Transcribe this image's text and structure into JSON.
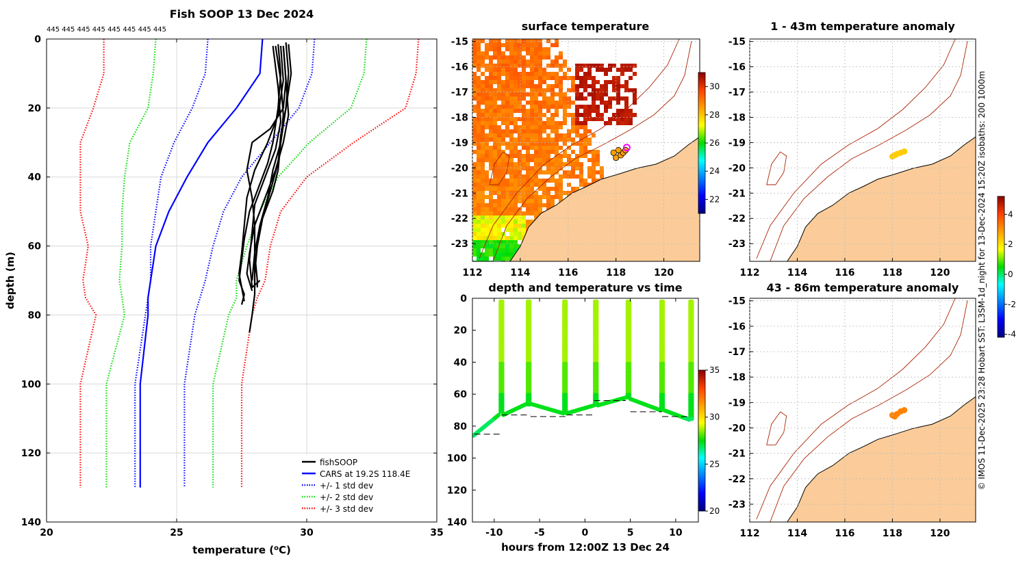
{
  "figure_title": "Fish SOOP 13 Dec 2024",
  "serial_numbers": "445 445 445 445 445 445 445 445",
  "credit_text": "© IMOS 11-Dec-2025 23:28 Hobart SST: L3SM-1d_night for 13-Dec-2024 15:20Z isobaths: 200  1000m",
  "colors": {
    "fishsoop": "#000000",
    "cars": "#0000ff",
    "std1": "#0000ff",
    "std2": "#00dd00",
    "std3": "#ff0000",
    "land": "#fbcc99",
    "coast": "#000000",
    "isobath": "#aa2200",
    "grid": "#d8d8d8"
  },
  "chart_data": [
    {
      "id": "profile",
      "type": "line",
      "title": "",
      "xlabel": "temperature (°C)",
      "ylabel": "depth (m)",
      "xlim": [
        20,
        35
      ],
      "ylim": [
        0,
        140
      ],
      "xticks": [
        "20",
        "25",
        "30",
        "35"
      ],
      "yticks": [
        "0",
        "20",
        "40",
        "60",
        "80",
        "100",
        "120",
        "140"
      ],
      "yaxis_reversed": true,
      "legend": {
        "position": "bottom-right",
        "entries": [
          {
            "label": "fishSOOP",
            "key": "fishsoop"
          },
          {
            "label": "CARS at 19.2S 118.4E",
            "key": "cars"
          },
          {
            "label": "+/- 1 std dev",
            "key": "std1"
          },
          {
            "label": "+/- 2 std dev",
            "key": "std2"
          },
          {
            "label": "+/- 3 std dev",
            "key": "std3"
          }
        ]
      },
      "depth": [
        0,
        10,
        20,
        30,
        40,
        50,
        60,
        70,
        75,
        80,
        100,
        130
      ],
      "series": [
        {
          "name": "CARS mean",
          "key": "cars",
          "style": "solid",
          "values": [
            28.3,
            28.2,
            27.3,
            26.2,
            25.4,
            24.7,
            24.2,
            24.0,
            23.9,
            23.9,
            23.6,
            23.6
          ]
        },
        {
          "name": "CARS -1 std",
          "key": "std1",
          "style": "dotted",
          "values": [
            26.2,
            26.1,
            25.6,
            24.9,
            24.4,
            24.2,
            24.0,
            24.0,
            23.9,
            23.8,
            23.4,
            23.4
          ]
        },
        {
          "name": "CARS +1 std",
          "key": "std1",
          "style": "dotted",
          "values": [
            30.3,
            30.2,
            29.7,
            28.6,
            27.5,
            26.8,
            26.4,
            26.1,
            25.9,
            25.7,
            25.3,
            25.3
          ]
        },
        {
          "name": "CARS -2 std",
          "key": "std2",
          "style": "dotted",
          "values": [
            24.2,
            24.1,
            23.9,
            23.2,
            23.0,
            22.9,
            22.9,
            22.8,
            22.9,
            23.0,
            22.3,
            22.3
          ]
        },
        {
          "name": "CARS +2 std",
          "key": "std2",
          "style": "dotted",
          "values": [
            32.3,
            32.2,
            31.7,
            30.1,
            28.9,
            28.2,
            27.7,
            27.3,
            27.3,
            27.0,
            26.4,
            26.4
          ]
        },
        {
          "name": "CARS -3 std",
          "key": "std3",
          "style": "dotted",
          "values": [
            22.2,
            22.2,
            21.8,
            21.3,
            21.3,
            21.3,
            21.6,
            21.4,
            21.5,
            21.9,
            21.3,
            21.3
          ]
        },
        {
          "name": "CARS +3 std",
          "key": "std3",
          "style": "dotted",
          "values": [
            34.3,
            34.2,
            33.8,
            31.8,
            30.0,
            29.0,
            28.6,
            28.4,
            28.1,
            27.9,
            27.5,
            27.5
          ]
        }
      ],
      "profiles": [
        {
          "values": [
            [
              28.9,
              1.5
            ],
            [
              29.0,
              10
            ],
            [
              28.9,
              20
            ],
            [
              28.7,
              30
            ],
            [
              28.5,
              36
            ],
            [
              28.2,
              42
            ],
            [
              27.8,
              50
            ],
            [
              27.6,
              58
            ],
            [
              27.5,
              64
            ],
            [
              27.4,
              70
            ],
            [
              27.6,
              74
            ],
            [
              27.5,
              77
            ]
          ]
        },
        {
          "values": [
            [
              29.1,
              2
            ],
            [
              29.2,
              12
            ],
            [
              29.3,
              22
            ],
            [
              29.1,
              30
            ],
            [
              28.8,
              38
            ],
            [
              28.4,
              46
            ],
            [
              28.0,
              54
            ],
            [
              27.8,
              62
            ],
            [
              27.7,
              68
            ],
            [
              27.9,
              73
            ]
          ]
        },
        {
          "values": [
            [
              29.3,
              1.5
            ],
            [
              29.4,
              10
            ],
            [
              29.2,
              20
            ],
            [
              29.0,
              28
            ],
            [
              28.9,
              36
            ],
            [
              28.6,
              44
            ],
            [
              28.3,
              52
            ],
            [
              28.1,
              60
            ],
            [
              28.0,
              66
            ],
            [
              28.0,
              72
            ]
          ]
        },
        {
          "values": [
            [
              28.7,
              2
            ],
            [
              28.9,
              14
            ],
            [
              29.0,
              24
            ],
            [
              28.8,
              32
            ],
            [
              28.4,
              40
            ],
            [
              28.0,
              48
            ],
            [
              27.9,
              56
            ],
            [
              27.8,
              64
            ],
            [
              27.9,
              72
            ],
            [
              28.2,
              70
            ]
          ]
        },
        {
          "values": [
            [
              29.0,
              2
            ],
            [
              29.1,
              12
            ],
            [
              28.9,
              22
            ],
            [
              28.5,
              30
            ],
            [
              28.0,
              38
            ],
            [
              27.7,
              46
            ],
            [
              27.6,
              54
            ],
            [
              27.5,
              62
            ],
            [
              27.4,
              68
            ],
            [
              27.6,
              76
            ]
          ]
        },
        {
          "values": [
            [
              29.2,
              1
            ],
            [
              29.3,
              10
            ],
            [
              29.2,
              20
            ],
            [
              29.0,
              30
            ],
            [
              28.7,
              38
            ],
            [
              28.5,
              46
            ],
            [
              28.2,
              54
            ],
            [
              28.0,
              62
            ],
            [
              27.9,
              70
            ]
          ]
        },
        {
          "values": [
            [
              28.8,
              2
            ],
            [
              29.0,
              12
            ],
            [
              29.1,
              22
            ],
            [
              29.0,
              30
            ],
            [
              28.9,
              38
            ],
            [
              28.7,
              44
            ],
            [
              28.3,
              52
            ],
            [
              28.1,
              60
            ],
            [
              28.0,
              68
            ],
            [
              28.0,
              74
            ],
            [
              27.9,
              80
            ],
            [
              27.8,
              85
            ]
          ]
        },
        {
          "values": [
            [
              29.1,
              2
            ],
            [
              29.2,
              12
            ],
            [
              29.1,
              20
            ],
            [
              28.6,
              26
            ],
            [
              27.9,
              30
            ],
            [
              27.7,
              38
            ],
            [
              27.9,
              46
            ],
            [
              28.0,
              54
            ],
            [
              28.0,
              62
            ],
            [
              28.1,
              70
            ],
            [
              28.1,
              72
            ]
          ]
        }
      ]
    },
    {
      "id": "time",
      "type": "scatter",
      "title": "depth and temperature vs time",
      "xlabel": "hours from 12:00Z 13 Dec 24",
      "ylabel": "",
      "xlim": [
        -12.4,
        12.5
      ],
      "ylim": [
        0,
        140
      ],
      "xticks": [
        "-10",
        "-5",
        "0",
        "5",
        "10"
      ],
      "yticks": [
        "0",
        "20",
        "40",
        "60",
        "80",
        "100",
        "120",
        "140"
      ],
      "yaxis_reversed": true,
      "colorbar": {
        "min": 20,
        "max": 35,
        "ticks": [
          "20",
          "25",
          "30",
          "35"
        ]
      },
      "dives": [
        {
          "t": -9.2,
          "bottom": 72
        },
        {
          "t": -6.2,
          "bottom": 67
        },
        {
          "t": -2.2,
          "bottom": 72
        },
        {
          "t": 1.2,
          "bottom": 65
        },
        {
          "t": 4.8,
          "bottom": 63
        },
        {
          "t": 8.5,
          "bottom": 70
        },
        {
          "t": 11.7,
          "bottom": 76
        }
      ],
      "bottom_segments": [
        {
          "t0": -12.3,
          "t1": -9.5,
          "d0": 86,
          "d1": 73
        },
        {
          "t0": -9.0,
          "t1": -6.4,
          "d0": 73,
          "d1": 66
        },
        {
          "t0": -6.0,
          "t1": -2.4,
          "d0": 66,
          "d1": 72
        },
        {
          "t0": -2.0,
          "t1": 1.0,
          "d0": 72,
          "d1": 67
        },
        {
          "t0": 1.4,
          "t1": 4.6,
          "d0": 67,
          "d1": 62
        },
        {
          "t0": 5.0,
          "t1": 8.3,
          "d0": 63,
          "d1": 70
        },
        {
          "t0": 8.7,
          "t1": 11.5,
          "d0": 70,
          "d1": 76
        }
      ],
      "dashed_levels": [
        {
          "t0": -12.2,
          "t1": -9.2,
          "d": 85
        },
        {
          "t0": -9.2,
          "t1": -6.0,
          "d": 73
        },
        {
          "t0": -6.0,
          "t1": -2.0,
          "d": 74
        },
        {
          "t0": -2.0,
          "t1": 1.0,
          "d": 73
        },
        {
          "t0": 1.0,
          "t1": 4.5,
          "d": 64
        },
        {
          "t0": 5.0,
          "t1": 8.5,
          "d": 71
        },
        {
          "t0": 8.5,
          "t1": 11.5,
          "d": 74
        }
      ]
    },
    {
      "id": "sst_map",
      "type": "heatmap",
      "title": "surface temperature",
      "xticks": [
        "112",
        "114",
        "116",
        "118",
        "120"
      ],
      "yticks": [
        "-15",
        "-16",
        "-17",
        "-18",
        "-19",
        "-20",
        "-21",
        "-22",
        "-23"
      ],
      "xlim": [
        112,
        121.5
      ],
      "ylim": [
        -23.7,
        -14.9
      ],
      "colorbar": {
        "min": 21,
        "max": 31,
        "ticks": [
          "22",
          "24",
          "26",
          "28",
          "30"
        ]
      },
      "stations": [
        [
          118.0,
          -19.6
        ],
        [
          118.2,
          -19.5
        ],
        [
          118.3,
          -19.4
        ],
        [
          118.1,
          -19.3
        ],
        [
          117.9,
          -19.4
        ],
        [
          118.4,
          -19.3
        ]
      ],
      "station_temp": 28.5,
      "highlight": [
        118.45,
        -19.2
      ]
    },
    {
      "id": "anom_top",
      "type": "heatmap",
      "title": "1 - 43m temperature anomaly",
      "xticks": [
        "112",
        "114",
        "116",
        "118",
        "120"
      ],
      "yticks": [
        "-15",
        "-16",
        "-17",
        "-18",
        "-19",
        "-20",
        "-21",
        "-22",
        "-23"
      ],
      "xlim": [
        112,
        121.5
      ],
      "ylim": [
        -23.7,
        -14.9
      ],
      "points": [
        [
          118.0,
          -19.55
        ],
        [
          118.2,
          -19.45
        ],
        [
          118.35,
          -19.4
        ],
        [
          118.1,
          -19.5
        ],
        [
          118.5,
          -19.35
        ]
      ],
      "anomaly": 2.3
    },
    {
      "id": "anom_bottom",
      "type": "heatmap",
      "title": "43 - 86m temperature anomaly",
      "xticks": [
        "112",
        "114",
        "116",
        "118",
        "120"
      ],
      "yticks": [
        "-15",
        "-16",
        "-17",
        "-18",
        "-19",
        "-20",
        "-21",
        "-22",
        "-23"
      ],
      "xlim": [
        112,
        121.5
      ],
      "ylim": [
        -23.7,
        -14.9
      ],
      "points": [
        [
          118.0,
          -19.5
        ],
        [
          118.2,
          -19.45
        ],
        [
          118.35,
          -19.35
        ],
        [
          118.1,
          -19.55
        ],
        [
          118.5,
          -19.3
        ]
      ],
      "anomaly": 3.2
    }
  ],
  "anomaly_colorbar": {
    "min": -4.2,
    "max": 5.2,
    "ticks": [
      "-4",
      "-2",
      "0",
      "2",
      "4"
    ]
  }
}
